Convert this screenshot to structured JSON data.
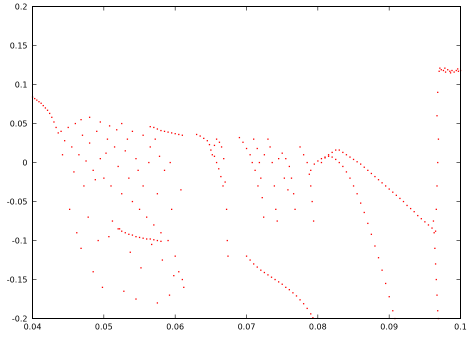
{
  "chart_data": {
    "type": "scatter",
    "title": "",
    "xlabel": "",
    "ylabel": "",
    "xlim": [
      0.04,
      0.1
    ],
    "ylim": [
      -0.2,
      0.2
    ],
    "grid": false,
    "legend": "none",
    "x_ticks": [
      "0.04",
      "0.05",
      "0.06",
      "0.07",
      "0.08",
      "0.09",
      "0.1"
    ],
    "y_ticks": [
      "0.2",
      "0.15",
      "0.1",
      "0.05",
      "0",
      "-0.05",
      "-0.1",
      "-0.15",
      "-0.2"
    ],
    "x_tick_values": [
      0.04,
      0.05,
      0.06,
      0.07,
      0.08,
      0.09,
      0.1
    ],
    "y_tick_values": [
      0.2,
      0.15,
      0.1,
      0.05,
      0,
      -0.05,
      -0.1,
      -0.15,
      -0.2
    ],
    "series": [
      {
        "color": "#ff0000",
        "points": [
          [
            0.04,
            0.084
          ],
          [
            0.0403,
            0.082
          ],
          [
            0.0406,
            0.08
          ],
          [
            0.0409,
            0.078
          ],
          [
            0.0412,
            0.076
          ],
          [
            0.0415,
            0.073
          ],
          [
            0.0418,
            0.07
          ],
          [
            0.0421,
            0.067
          ],
          [
            0.0424,
            0.063
          ],
          [
            0.0427,
            0.058
          ],
          [
            0.043,
            0.052
          ],
          [
            0.0433,
            0.045
          ],
          [
            0.0436,
            0.038
          ],
          [
            0.044,
            0.04
          ],
          [
            0.0445,
            0.028
          ],
          [
            0.045,
            0.045
          ],
          [
            0.0455,
            0.02
          ],
          [
            0.046,
            0.05
          ],
          [
            0.0465,
            0.01
          ],
          [
            0.047,
            0.035
          ],
          [
            0.0475,
            0.002
          ],
          [
            0.048,
            0.025
          ],
          [
            0.0485,
            -0.01
          ],
          [
            0.049,
            0.04
          ],
          [
            0.0495,
            0.005
          ],
          [
            0.05,
            -0.02
          ],
          [
            0.0505,
            0.03
          ],
          [
            0.051,
            -0.03
          ],
          [
            0.0515,
            0.02
          ],
          [
            0.052,
            -0.005
          ],
          [
            0.0525,
            -0.04
          ],
          [
            0.053,
            0.015
          ],
          [
            0.0535,
            -0.02
          ],
          [
            0.054,
            -0.05
          ],
          [
            0.0545,
            0.005
          ],
          [
            0.055,
            -0.06
          ],
          [
            0.0555,
            -0.03
          ],
          [
            0.056,
            -0.07
          ],
          [
            0.0565,
            0.02
          ],
          [
            0.057,
            -0.08
          ],
          [
            0.0575,
            -0.04
          ],
          [
            0.058,
            -0.09
          ],
          [
            0.0585,
            -0.01
          ],
          [
            0.059,
            -0.1
          ],
          [
            0.0595,
            -0.06
          ],
          [
            0.06,
            -0.12
          ],
          [
            0.0605,
            -0.14
          ],
          [
            0.061,
            -0.15
          ],
          [
            0.0442,
            0.01
          ],
          [
            0.0458,
            -0.012
          ],
          [
            0.0472,
            -0.03
          ],
          [
            0.0488,
            -0.022
          ],
          [
            0.0503,
            0.012
          ],
          [
            0.0518,
            0.042
          ],
          [
            0.0533,
            0.03
          ],
          [
            0.0548,
            -0.01
          ],
          [
            0.0563,
            0.0
          ],
          [
            0.0578,
            0.008
          ],
          [
            0.0593,
            0.0
          ],
          [
            0.0608,
            -0.035
          ],
          [
            0.0452,
            -0.06
          ],
          [
            0.0462,
            -0.09
          ],
          [
            0.0468,
            -0.11
          ],
          [
            0.0478,
            -0.07
          ],
          [
            0.0492,
            -0.1
          ],
          [
            0.0507,
            -0.095
          ],
          [
            0.0512,
            -0.075
          ],
          [
            0.0522,
            -0.085
          ],
          [
            0.0537,
            -0.115
          ],
          [
            0.0552,
            -0.135
          ],
          [
            0.0567,
            -0.105
          ],
          [
            0.0582,
            -0.125
          ],
          [
            0.0598,
            -0.145
          ],
          [
            0.0612,
            -0.16
          ],
          [
            0.0485,
            -0.14
          ],
          [
            0.0498,
            -0.16
          ],
          [
            0.0528,
            -0.165
          ],
          [
            0.0545,
            -0.175
          ],
          [
            0.0575,
            -0.18
          ],
          [
            0.0592,
            -0.17
          ],
          [
            0.0468,
            0.055
          ],
          [
            0.048,
            0.058
          ],
          [
            0.0495,
            0.052
          ],
          [
            0.0508,
            0.047
          ],
          [
            0.0525,
            0.05
          ],
          [
            0.054,
            0.04
          ],
          [
            0.0555,
            0.035
          ],
          [
            0.0572,
            0.03
          ],
          [
            0.052,
            -0.085
          ],
          [
            0.0525,
            -0.088
          ],
          [
            0.053,
            -0.09
          ],
          [
            0.0535,
            -0.092
          ],
          [
            0.054,
            -0.093
          ],
          [
            0.0545,
            -0.095
          ],
          [
            0.055,
            -0.096
          ],
          [
            0.0555,
            -0.097
          ],
          [
            0.056,
            -0.098
          ],
          [
            0.0565,
            -0.098
          ],
          [
            0.057,
            -0.099
          ],
          [
            0.0575,
            -0.1
          ],
          [
            0.058,
            -0.101
          ],
          [
            0.0565,
            0.046
          ],
          [
            0.057,
            0.045
          ],
          [
            0.0575,
            0.043
          ],
          [
            0.058,
            0.041
          ],
          [
            0.0585,
            0.04
          ],
          [
            0.059,
            0.039
          ],
          [
            0.0595,
            0.038
          ],
          [
            0.06,
            0.037
          ],
          [
            0.0605,
            0.036
          ],
          [
            0.061,
            0.035
          ],
          [
            0.063,
            0.036
          ],
          [
            0.0635,
            0.034
          ],
          [
            0.064,
            0.031
          ],
          [
            0.0645,
            0.028
          ],
          [
            0.0648,
            0.023
          ],
          [
            0.065,
            0.016
          ],
          [
            0.0652,
            0.01
          ],
          [
            0.0655,
            0.022
          ],
          [
            0.0658,
            0.03
          ],
          [
            0.0662,
            0.026
          ],
          [
            0.0665,
            0.02
          ],
          [
            0.0668,
            0.005
          ],
          [
            0.067,
            -0.025
          ],
          [
            0.0672,
            -0.06
          ],
          [
            0.0673,
            -0.1
          ],
          [
            0.0674,
            -0.12
          ],
          [
            0.0655,
            0.008
          ],
          [
            0.0658,
            0.0
          ],
          [
            0.0661,
            -0.008
          ],
          [
            0.0664,
            -0.018
          ],
          [
            0.0667,
            -0.03
          ],
          [
            0.069,
            0.032
          ],
          [
            0.0695,
            0.026
          ],
          [
            0.07,
            0.018
          ],
          [
            0.0705,
            0.01
          ],
          [
            0.071,
            0.03
          ],
          [
            0.0715,
            0.018
          ],
          [
            0.0718,
            0.0
          ],
          [
            0.072,
            -0.02
          ],
          [
            0.0722,
            -0.045
          ],
          [
            0.0724,
            -0.07
          ],
          [
            0.0708,
            0.0
          ],
          [
            0.0712,
            -0.01
          ],
          [
            0.0716,
            -0.03
          ],
          [
            0.0725,
            0.01
          ],
          [
            0.073,
            0.03
          ],
          [
            0.0733,
            0.02
          ],
          [
            0.0736,
            0.0
          ],
          [
            0.0739,
            -0.03
          ],
          [
            0.0741,
            -0.06
          ],
          [
            0.0743,
            -0.075
          ],
          [
            0.07,
            -0.12
          ],
          [
            0.0705,
            -0.125
          ],
          [
            0.071,
            -0.13
          ],
          [
            0.0715,
            -0.134
          ],
          [
            0.072,
            -0.138
          ],
          [
            0.0725,
            -0.141
          ],
          [
            0.073,
            -0.144
          ],
          [
            0.0735,
            -0.147
          ],
          [
            0.074,
            -0.15
          ],
          [
            0.0745,
            -0.153
          ],
          [
            0.075,
            -0.156
          ],
          [
            0.0755,
            -0.16
          ],
          [
            0.076,
            -0.163
          ],
          [
            0.0765,
            -0.167
          ],
          [
            0.077,
            -0.171
          ],
          [
            0.0775,
            -0.176
          ],
          [
            0.078,
            -0.181
          ],
          [
            0.0785,
            -0.187
          ],
          [
            0.079,
            -0.194
          ],
          [
            0.0793,
            -0.199
          ],
          [
            0.0745,
            0.005
          ],
          [
            0.075,
            0.012
          ],
          [
            0.0755,
            0.005
          ],
          [
            0.076,
            -0.005
          ],
          [
            0.0763,
            -0.02
          ],
          [
            0.0766,
            -0.04
          ],
          [
            0.0768,
            -0.06
          ],
          [
            0.0753,
            -0.02
          ],
          [
            0.0758,
            -0.035
          ],
          [
            0.0775,
            0.02
          ],
          [
            0.078,
            0.01
          ],
          [
            0.0785,
            0.0
          ],
          [
            0.0788,
            -0.015
          ],
          [
            0.079,
            -0.03
          ],
          [
            0.0792,
            -0.05
          ],
          [
            0.0794,
            -0.075
          ],
          [
            0.079,
            -0.01
          ],
          [
            0.0795,
            -0.002
          ],
          [
            0.08,
            0.002
          ],
          [
            0.0805,
            0.005
          ],
          [
            0.081,
            0.007
          ],
          [
            0.0815,
            0.008
          ],
          [
            0.082,
            0.007
          ],
          [
            0.0825,
            0.004
          ],
          [
            0.083,
            0.0
          ],
          [
            0.0835,
            -0.005
          ],
          [
            0.084,
            -0.012
          ],
          [
            0.0845,
            -0.02
          ],
          [
            0.085,
            -0.03
          ],
          [
            0.0855,
            -0.04
          ],
          [
            0.086,
            -0.052
          ],
          [
            0.0865,
            -0.064
          ],
          [
            0.087,
            -0.078
          ],
          [
            0.0875,
            -0.092
          ],
          [
            0.088,
            -0.107
          ],
          [
            0.0885,
            -0.122
          ],
          [
            0.089,
            -0.138
          ],
          [
            0.0895,
            -0.155
          ],
          [
            0.09,
            -0.172
          ],
          [
            0.0905,
            -0.19
          ],
          [
            0.0908,
            -0.2
          ],
          [
            0.0805,
            0.0
          ],
          [
            0.081,
            0.006
          ],
          [
            0.0815,
            0.01
          ],
          [
            0.082,
            0.013
          ],
          [
            0.0825,
            0.016
          ],
          [
            0.083,
            0.016
          ],
          [
            0.0835,
            0.013
          ],
          [
            0.084,
            0.01
          ],
          [
            0.0845,
            0.007
          ],
          [
            0.085,
            0.004
          ],
          [
            0.0855,
            0.001
          ],
          [
            0.086,
            -0.002
          ],
          [
            0.0865,
            -0.006
          ],
          [
            0.087,
            -0.01
          ],
          [
            0.0875,
            -0.014
          ],
          [
            0.088,
            -0.018
          ],
          [
            0.0885,
            -0.022
          ],
          [
            0.089,
            -0.026
          ],
          [
            0.0895,
            -0.03
          ],
          [
            0.09,
            -0.034
          ],
          [
            0.0905,
            -0.038
          ],
          [
            0.091,
            -0.042
          ],
          [
            0.0915,
            -0.046
          ],
          [
            0.092,
            -0.05
          ],
          [
            0.0925,
            -0.055
          ],
          [
            0.093,
            -0.059
          ],
          [
            0.0935,
            -0.063
          ],
          [
            0.094,
            -0.068
          ],
          [
            0.0945,
            -0.072
          ],
          [
            0.095,
            -0.076
          ],
          [
            0.0955,
            -0.08
          ],
          [
            0.096,
            -0.084
          ],
          [
            0.0965,
            -0.088
          ],
          [
            0.0962,
            -0.075
          ],
          [
            0.0963,
            -0.09
          ],
          [
            0.0964,
            -0.11
          ],
          [
            0.0965,
            -0.13
          ],
          [
            0.0966,
            -0.15
          ],
          [
            0.0967,
            -0.17
          ],
          [
            0.0968,
            -0.19
          ],
          [
            0.0969,
            -0.2
          ],
          [
            0.0966,
            -0.06
          ],
          [
            0.0967,
            -0.03
          ],
          [
            0.0968,
            0.0
          ],
          [
            0.0969,
            0.03
          ],
          [
            0.0967,
            0.06
          ],
          [
            0.0968,
            0.09
          ],
          [
            0.097,
            0.117
          ],
          [
            0.0973,
            0.119
          ],
          [
            0.0976,
            0.118
          ],
          [
            0.0979,
            0.116
          ],
          [
            0.0982,
            0.119
          ],
          [
            0.0985,
            0.117
          ],
          [
            0.0988,
            0.118
          ],
          [
            0.0991,
            0.116
          ],
          [
            0.0994,
            0.118
          ],
          [
            0.0997,
            0.117
          ],
          [
            0.1,
            0.118
          ],
          [
            0.0971,
            0.121
          ],
          [
            0.0978,
            0.121
          ],
          [
            0.0986,
            0.115
          ],
          [
            0.0996,
            0.12
          ]
        ]
      }
    ]
  }
}
